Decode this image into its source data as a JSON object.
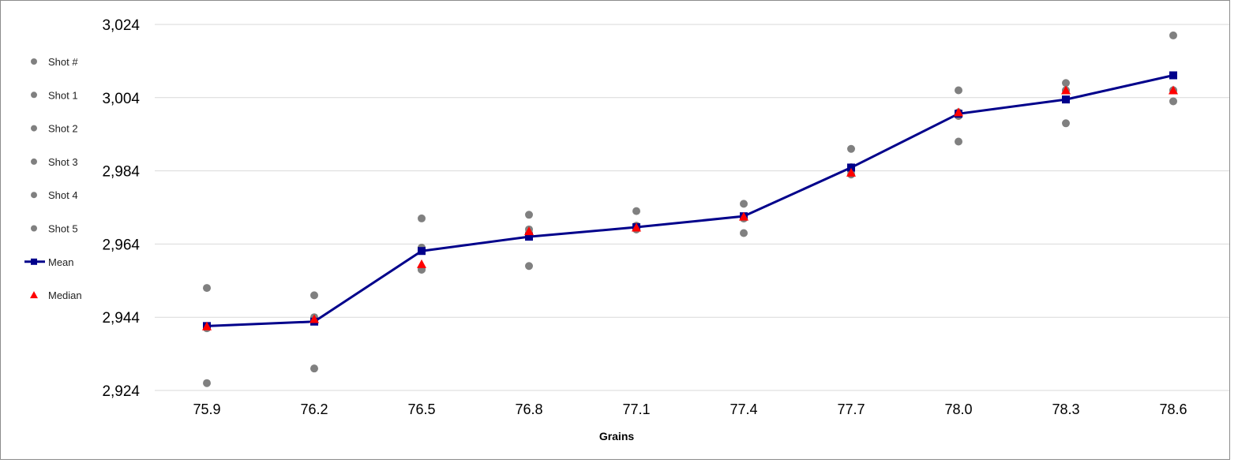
{
  "chart_data": {
    "type": "line",
    "title": "",
    "xlabel": "Grains",
    "ylabel": "",
    "x": [
      "75.9",
      "76.2",
      "76.5",
      "76.8",
      "77.1",
      "77.4",
      "77.7",
      "78.0",
      "78.3",
      "78.6"
    ],
    "ylim": [
      2924,
      3024
    ],
    "yticks": [
      2924,
      2944,
      2964,
      2984,
      3004,
      3024
    ],
    "ytick_labels": [
      "2,924",
      "2,944",
      "2,964",
      "2,984",
      "3,004",
      "3,024"
    ],
    "grid": true,
    "legend_position": "left",
    "series": [
      {
        "name": "Shot #",
        "type": "scatter",
        "color": "#808080",
        "values": []
      },
      {
        "name": "Shot 1",
        "type": "scatter",
        "color": "#808080",
        "values": [
          2952,
          2950,
          2971,
          2972,
          2973,
          2975,
          2990,
          3006,
          3008,
          3021
        ]
      },
      {
        "name": "Shot 2",
        "type": "scatter",
        "color": "#808080",
        "values": [
          2926,
          2930,
          2957,
          2958,
          2968,
          2967,
          2983,
          2992,
          2997,
          3003
        ]
      },
      {
        "name": "Shot 3",
        "type": "scatter",
        "color": "#808080",
        "values": [
          2941,
          2943,
          2957,
          2967,
          2968,
          2971,
          2984,
          3000,
          3006,
          3006
        ]
      },
      {
        "name": "Shot 4",
        "type": "scatter",
        "color": "#808080",
        "values": [
          2941,
          2944,
          2963,
          2968,
          2969,
          2971,
          2984,
          2999,
          3006,
          3006
        ]
      },
      {
        "name": "Shot 5",
        "type": "scatter",
        "color": "#808080",
        "values": [
          2941,
          2943,
          2963,
          2967,
          2969,
          2971,
          2985,
          2999,
          3006,
          3006
        ]
      },
      {
        "name": "Mean",
        "type": "line",
        "color": "#00008B",
        "marker": "square",
        "values": [
          2941.6,
          2942.8,
          2962.1,
          2966.0,
          2968.6,
          2971.6,
          2984.9,
          2999.6,
          3003.5,
          3010.1
        ]
      },
      {
        "name": "Median",
        "type": "scatter",
        "color": "#FF0000",
        "marker": "triangle",
        "values": [
          2941.5,
          2943.5,
          2958.5,
          2967.5,
          2968.5,
          2971.5,
          2983.5,
          3000.0,
          3006.0,
          3006.0
        ]
      }
    ]
  }
}
